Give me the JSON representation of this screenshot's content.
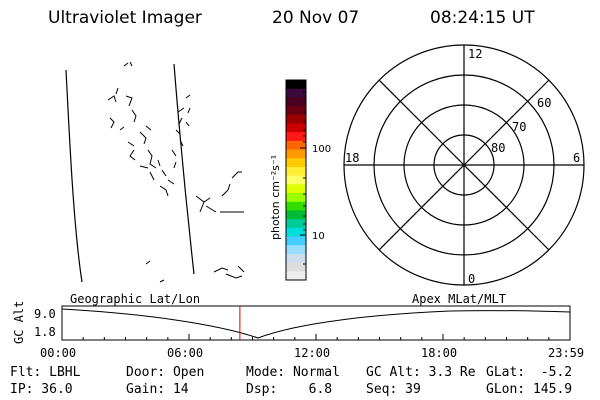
{
  "header": {
    "title": "Ultraviolet Imager",
    "date": "20 Nov 07",
    "time": "08:24:15 UT"
  },
  "colorbar": {
    "label": "photon cm⁻²s⁻¹",
    "ticks": [
      "100",
      "10"
    ],
    "colors": [
      "#000000",
      "#3a0a3a",
      "#4a0020",
      "#6b0010",
      "#9c0000",
      "#cc0000",
      "#ff1a1a",
      "#ff6600",
      "#ff9900",
      "#ffcc00",
      "#ffee33",
      "#ffff66",
      "#ddff00",
      "#99ff00",
      "#33dd00",
      "#00bb33",
      "#00cc99",
      "#00dddd",
      "#44ccff",
      "#99ddff",
      "#ccddee",
      "#dddddd",
      "#eeeeee"
    ]
  },
  "polar": {
    "mlt_labels": {
      "top": "12",
      "bottom": "0",
      "left": "18",
      "right": "6"
    },
    "lat_labels": [
      "60",
      "70",
      "80"
    ]
  },
  "orbit_plot": {
    "left_title": "Geographic Lat/Lon",
    "right_title": "Apex MLat/MLT",
    "ylabel": "GC Alt",
    "y_ticks": [
      "9.0",
      "1.8"
    ],
    "x_ticks": [
      "00:00",
      "06:00",
      "12:00",
      "18:00",
      "23:59"
    ],
    "current_time_hours": 8.404
  },
  "status": {
    "filter": "Flt: LBHL",
    "ip": "IP: 36.0",
    "door": "Door: Open",
    "gain": "Gain: 14",
    "mode": "Mode: Normal",
    "dsp": "Dsp:    6.8",
    "gc_alt": "GC Alt: 3.3 Re",
    "seq": "Seq: 39",
    "glat": "GLat:  -5.2",
    "glon": "GLon: 145.9"
  }
}
